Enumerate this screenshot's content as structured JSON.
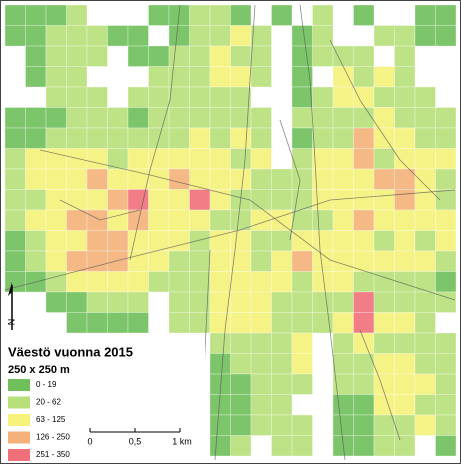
{
  "map": {
    "title": "Väestö vuonna 2015",
    "subtitle": "250 x 250 m",
    "north": "N",
    "legend": [
      {
        "label": "0 - 19",
        "color": "#6fbf5a"
      },
      {
        "label": "20 - 62",
        "color": "#b8e07a"
      },
      {
        "label": "63 - 125",
        "color": "#f6f27a"
      },
      {
        "label": "126 - 250",
        "color": "#f4b27a"
      },
      {
        "label": "251 - 350",
        "color": "#f0707a"
      }
    ],
    "scale": [
      "0",
      "0,5",
      "1 km"
    ]
  }
}
